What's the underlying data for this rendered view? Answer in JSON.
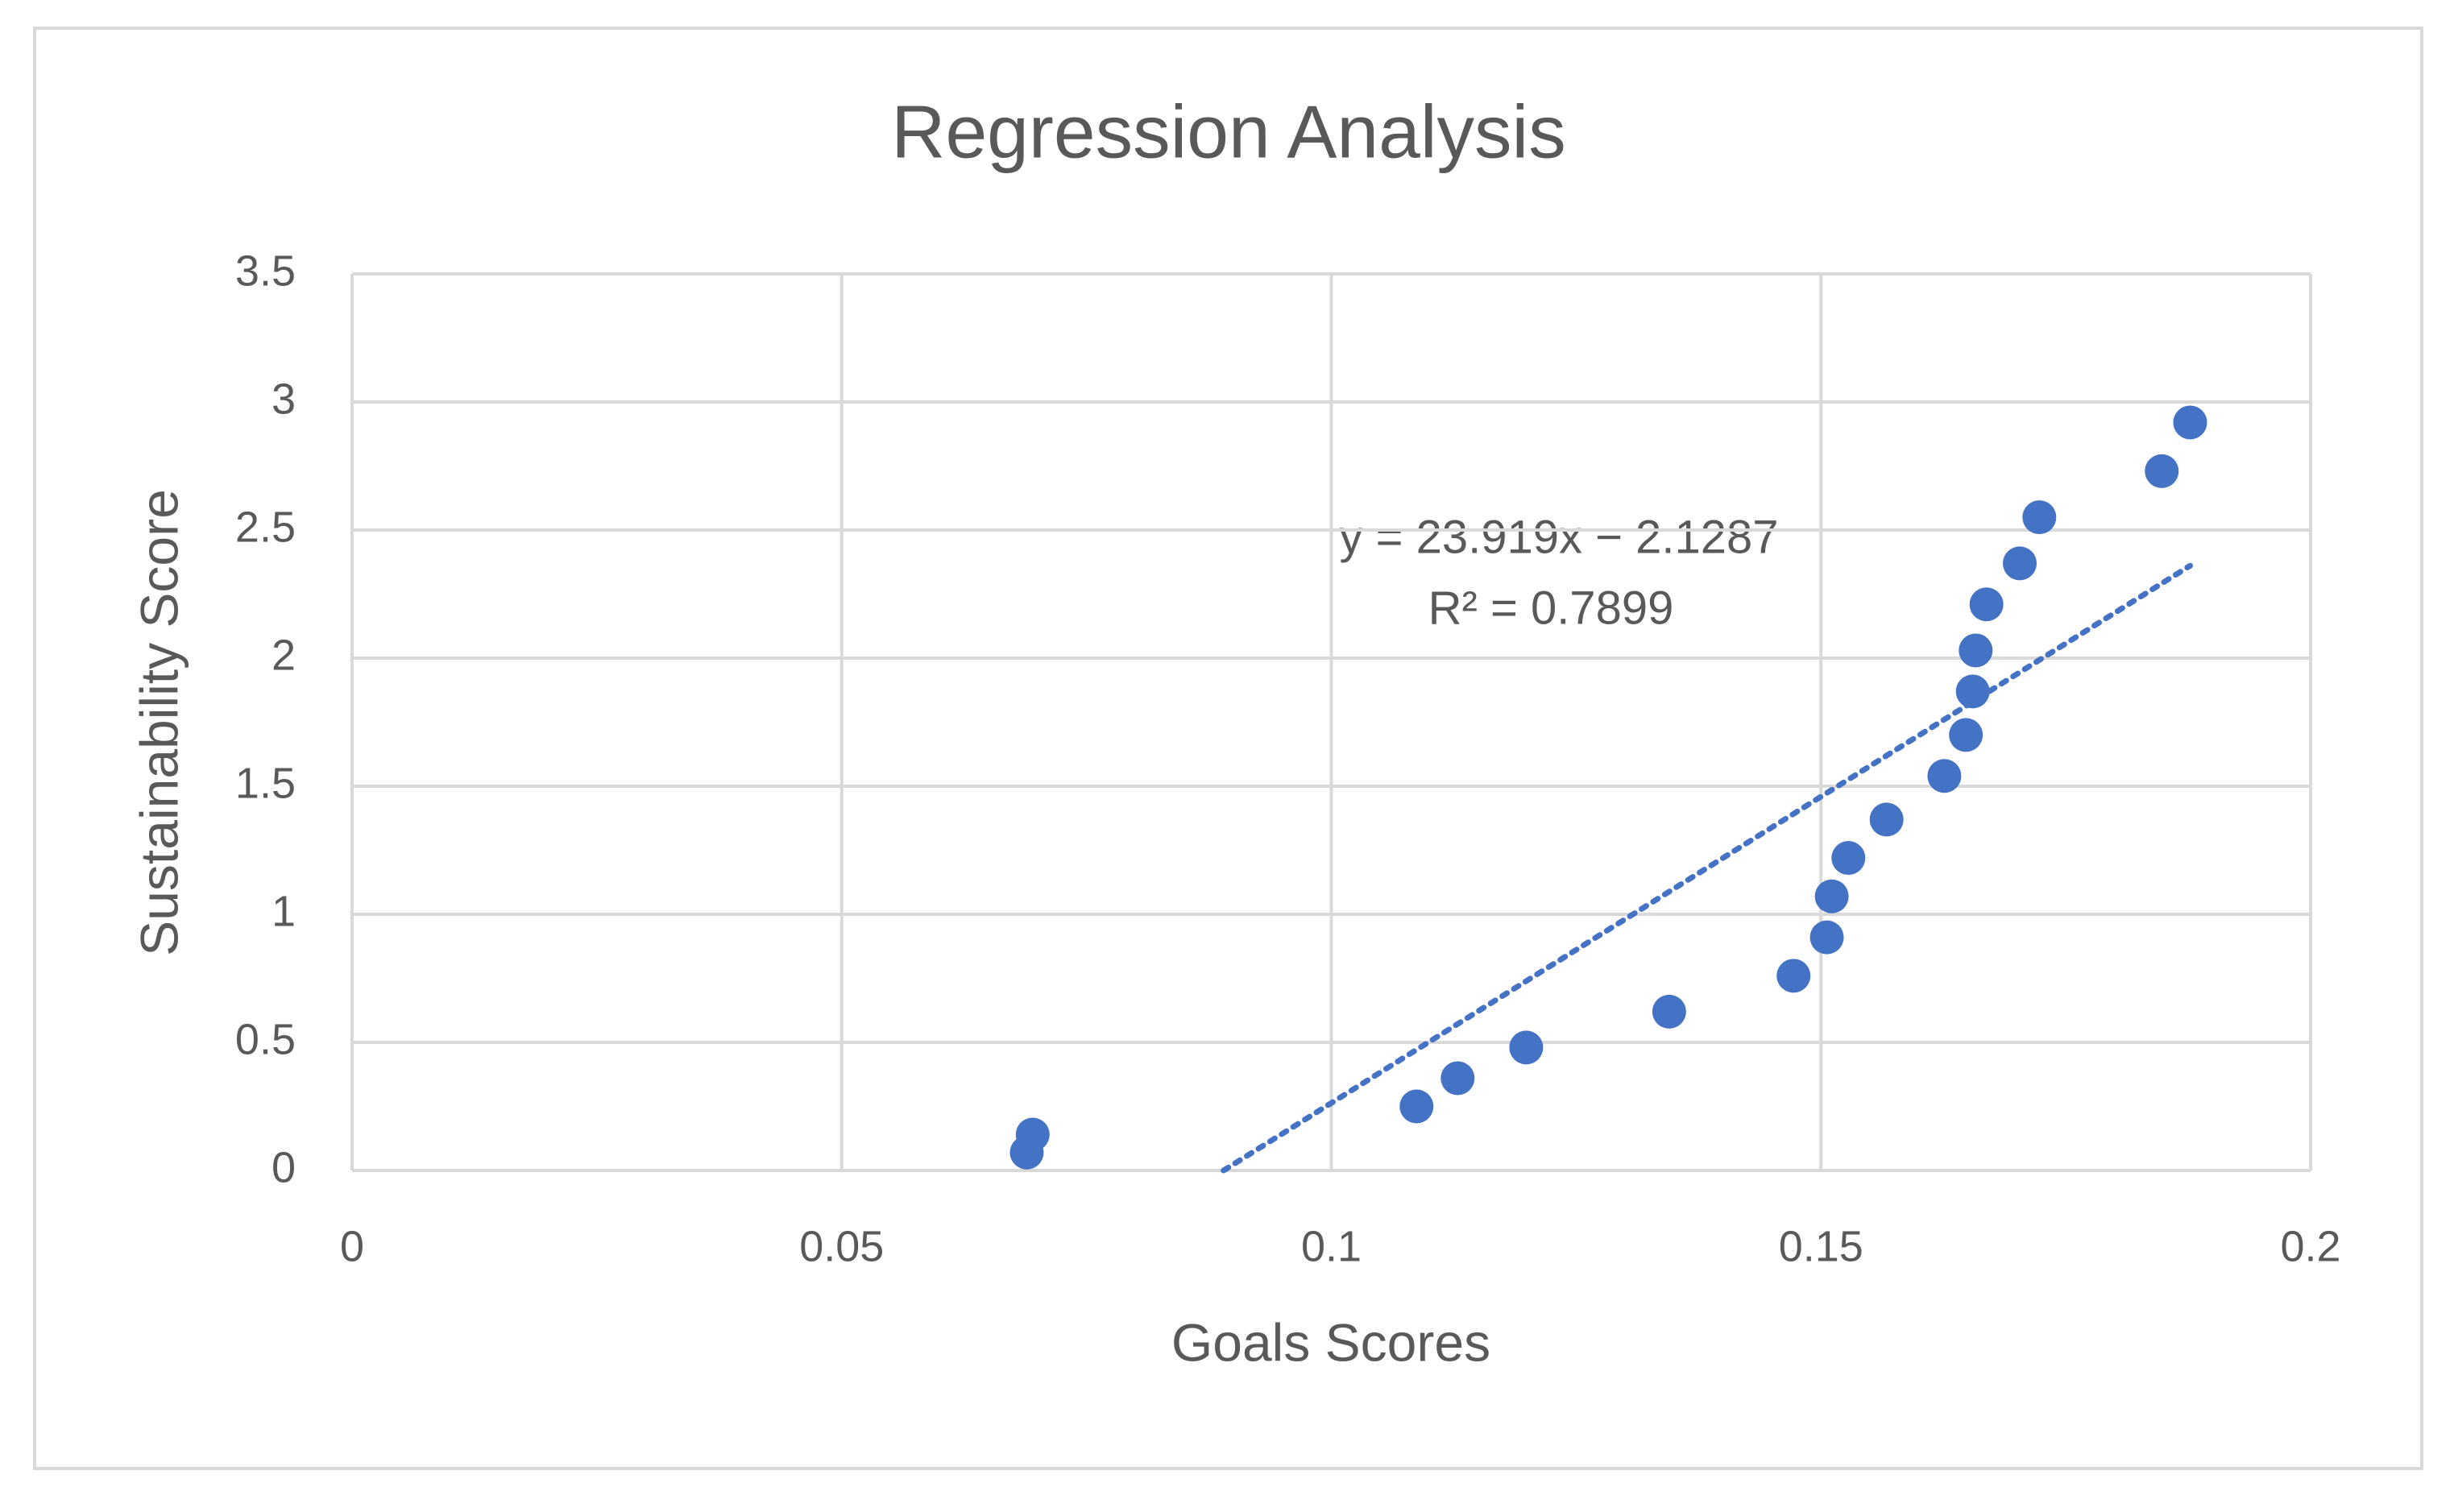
{
  "chart_data": {
    "type": "scatter",
    "title": "Regression Analysis",
    "x_label": "Goals Scores",
    "y_label": "Sustainability Score",
    "x": [
      0.0695,
      0.0689,
      0.1087,
      0.1129,
      0.1199,
      0.1345,
      0.1472,
      0.1506,
      0.1511,
      0.1528,
      0.1567,
      0.1626,
      0.1648,
      0.1655,
      0.1658,
      0.1669,
      0.1703,
      0.1723,
      0.1848,
      0.1877
    ],
    "values": [
      0.14,
      0.07,
      0.25,
      0.36,
      0.48,
      0.62,
      0.76,
      0.91,
      1.07,
      1.22,
      1.37,
      1.54,
      1.7,
      1.87,
      2.03,
      2.21,
      2.37,
      2.55,
      2.73,
      2.92
    ],
    "color": "#4472c4",
    "trendline": {
      "slope": 23.919,
      "intercept": -2.1287,
      "equation": "y = 23.919x − 2.1287",
      "r_squared": 0.7899,
      "r_squared_label": "R² = 0.7899"
    },
    "xlim": [
      0,
      0.2
    ],
    "xticks": [
      0,
      0.05,
      0.1,
      0.15,
      0.2
    ],
    "ylim": [
      0,
      3.5
    ],
    "yticks": [
      0,
      0.5,
      1,
      1.5,
      2,
      2.5,
      3,
      3.5
    ],
    "grid": true
  }
}
